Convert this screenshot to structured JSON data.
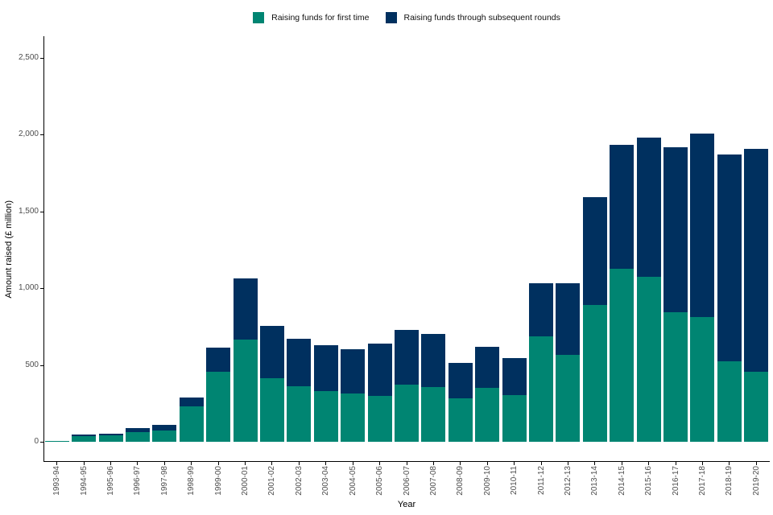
{
  "chart_data": {
    "type": "bar",
    "stacked": true,
    "title": "",
    "xlabel": "Year",
    "ylabel": "Amount raised (£ million)",
    "legend_position": "top",
    "grid": false,
    "background": "#ffffff",
    "axis_color": "#000000",
    "tick_label_color": "#4d4d4d",
    "categories": [
      "1993-94",
      "1994-95",
      "1995-96",
      "1996-97",
      "1997-98",
      "1998-99",
      "1999-00",
      "2000-01",
      "2001-02",
      "2002-03",
      "2003-04",
      "2004-05",
      "2005-06",
      "2006-07",
      "2007-08",
      "2008-09",
      "2009-10",
      "2010-11",
      "2011-12",
      "2012-13",
      "2013-14",
      "2014-15",
      "2015-16",
      "2016-17",
      "2017-18",
      "2018-19",
      "2019-20"
    ],
    "series": [
      {
        "name": "Raising funds for first time",
        "color": "#008572",
        "values": [
          4,
          38,
          43,
          63,
          75,
          228,
          458,
          665,
          412,
          362,
          330,
          315,
          297,
          371,
          359,
          281,
          351,
          305,
          686,
          566,
          893,
          1126,
          1074,
          846,
          814,
          525,
          455
        ]
      },
      {
        "name": "Raising funds through subsequent rounds",
        "color": "#00305f",
        "values": [
          1,
          7,
          10,
          27,
          33,
          60,
          157,
          398,
          345,
          307,
          297,
          290,
          343,
          355,
          341,
          232,
          265,
          238,
          345,
          466,
          699,
          807,
          908,
          1070,
          1193,
          1345,
          1454
        ]
      }
    ],
    "y_ticks": [
      "0",
      "500",
      "1,000",
      "1,500",
      "2,000",
      "2,500"
    ],
    "y_tick_values": [
      0,
      500,
      1000,
      1500,
      2000,
      2500
    ],
    "ylim": [
      0,
      2641
    ]
  }
}
